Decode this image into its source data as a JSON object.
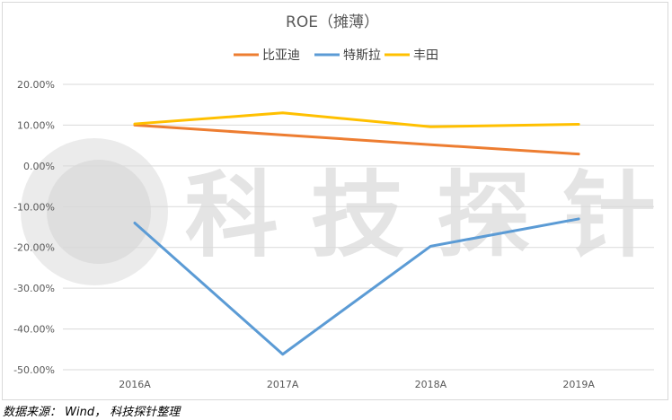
{
  "source_note": "数据来源： Wind， 科技探针整理",
  "watermark": {
    "text": "科 技 探 针"
  },
  "colors": {
    "byd": "#ED7D31",
    "tesla": "#5B9BD5",
    "toyota": "#FFC000",
    "grid": "#d9d9d9",
    "axis_text": "#595959",
    "title": "#595959"
  },
  "chart_data": {
    "type": "line",
    "title": "ROE（摊薄）",
    "xlabel": "",
    "ylabel": "",
    "categories": [
      "2016A",
      "2017A",
      "2018A",
      "2019A"
    ],
    "ylim": [
      -50,
      20
    ],
    "y_ticks": [
      20,
      10,
      0,
      -10,
      -20,
      -30,
      -40,
      -50
    ],
    "y_tick_labels": [
      "20.00%",
      "10.00%",
      "0.00%",
      "-10.00%",
      "-20.00%",
      "-30.00%",
      "-40.00%",
      "-50.00%"
    ],
    "grid": true,
    "legend_position": "top",
    "series": [
      {
        "name": "比亚迪",
        "color_key": "byd",
        "values": [
          10.0,
          7.6,
          5.2,
          2.9
        ]
      },
      {
        "name": "特斯拉",
        "color_key": "tesla",
        "values": [
          -14.0,
          -46.2,
          -19.7,
          -13.0
        ]
      },
      {
        "name": "丰田",
        "color_key": "toyota",
        "values": [
          10.3,
          13.0,
          9.6,
          10.2
        ]
      }
    ]
  }
}
